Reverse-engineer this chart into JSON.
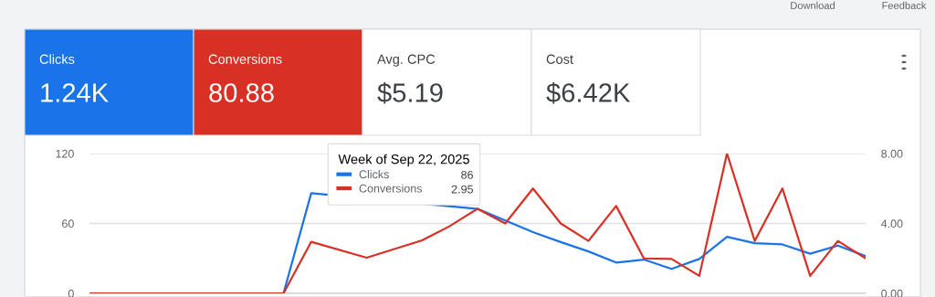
{
  "chart_data": [
    {
      "type": "other",
      "annotations": [
        "Download",
        "Feedback",
        "Clicks",
        "1.24K",
        "Conversions",
        "80.88",
        "Avg. CPC",
        "$5.19",
        "Cost",
        "$6.42K"
      ],
      "colors": [
        "#1a73e8",
        "#d93025",
        "#ffffff",
        "#ffffff"
      ]
    },
    {
      "type": "line",
      "categories": [
        null,
        null,
        null,
        null,
        null,
        null,
        null,
        null,
        null,
        null,
        null,
        null,
        null,
        null,
        null,
        null,
        null,
        null,
        null,
        null,
        null,
        null,
        null,
        null,
        null,
        null,
        null,
        null,
        null
      ],
      "series": [
        {
          "name": "Clicks",
          "color": "#1a73e8",
          "axis": "y",
          "values": [
            null,
            null,
            null,
            null,
            null,
            null,
            0,
            0,
            86,
            null,
            null,
            null,
            null,
            null,
            72.5,
            62.5,
            52.5,
            44,
            36,
            26.4,
            29,
            21,
            29.5,
            48.5,
            43,
            42,
            34,
            41,
            32
          ]
        },
        {
          "name": "Conversions",
          "color": "#d93025",
          "axis": "y2",
          "values": [
            0,
            0,
            0,
            0,
            0,
            0,
            0,
            0,
            2.95,
            null,
            2.04,
            null,
            3.03,
            3.85,
            4.84,
            4.0,
            6.0,
            4.0,
            3.0,
            5.0,
            2.0,
            1.97,
            1.0,
            8.0,
            3.0,
            6.0,
            1.0,
            3.0,
            2.0
          ]
        }
      ],
      "ylim": [
        0,
        120
      ],
      "yticks": [
        0,
        60,
        120
      ],
      "y2lim": [
        0,
        8
      ],
      "y2ticks": [
        {
          "value": 0,
          "label": "0.00"
        },
        {
          "value": 4,
          "label": "4.00"
        },
        {
          "value": 8,
          "label": "8.00"
        }
      ],
      "grid": "y",
      "legend": "top",
      "legend_title": "Week of Sep 22, 2025",
      "annotations": [
        "86",
        "2.95"
      ],
      "marker": "none",
      "line_style": "solid"
    }
  ]
}
